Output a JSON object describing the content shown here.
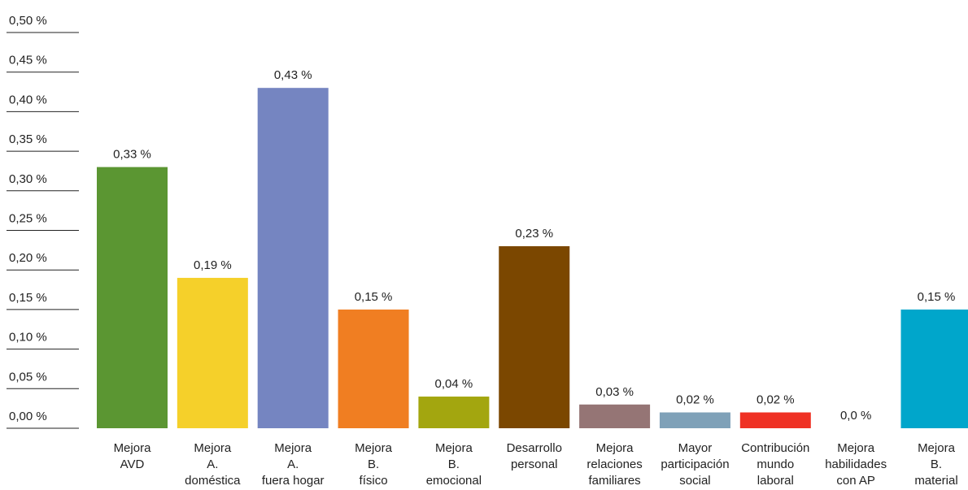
{
  "chart_data": {
    "type": "bar",
    "categories": [
      [
        "Mejora",
        "AVD"
      ],
      [
        "Mejora",
        "A.",
        "doméstica"
      ],
      [
        "Mejora",
        "A.",
        "fuera hogar"
      ],
      [
        "Mejora",
        "B.",
        "físico"
      ],
      [
        "Mejora",
        "B.",
        "emocional"
      ],
      [
        "Desarrollo",
        "personal"
      ],
      [
        "Mejora",
        "relaciones",
        "familiares"
      ],
      [
        "Mayor",
        "participación",
        "social"
      ],
      [
        "Contribución",
        "mundo",
        "laboral"
      ],
      [
        "Mejora",
        "habilidades",
        "con AP"
      ],
      [
        "Mejora",
        "B.",
        "material"
      ]
    ],
    "values": [
      0.33,
      0.19,
      0.43,
      0.15,
      0.04,
      0.23,
      0.03,
      0.02,
      0.02,
      0.0,
      0.15
    ],
    "value_labels": [
      "0,33 %",
      "0,19 %",
      "0,43 %",
      "0,15 %",
      "0,04 %",
      "0,23 %",
      "0,03 %",
      "0,02 %",
      "0,02 %",
      "0,0 %",
      "0,15 %"
    ],
    "colors": [
      "#5b9632",
      "#f5d02a",
      "#7585c1",
      "#f07e22",
      "#a3a60f",
      "#7b4700",
      "#957575",
      "#7fa1b8",
      "#ef3124",
      "#aaaaaa",
      "#00a6cb"
    ],
    "ylim": [
      0,
      0.5
    ],
    "yticks": [
      {
        "value": 0,
        "label": "0,00 %"
      },
      {
        "value": 0.05,
        "label": "0,05 %"
      },
      {
        "value": 0.1,
        "label": "0,10 %"
      },
      {
        "value": 0.15,
        "label": "0,15 %"
      },
      {
        "value": 0.2,
        "label": "0,20 %"
      },
      {
        "value": 0.25,
        "label": "0,25 %"
      },
      {
        "value": 0.3,
        "label": "0,30 %"
      },
      {
        "value": 0.35,
        "label": "0,35 %"
      },
      {
        "value": 0.4,
        "label": "0,40 %"
      },
      {
        "value": 0.45,
        "label": "0,45 %"
      },
      {
        "value": 0.5,
        "label": "0,50 %"
      }
    ]
  }
}
